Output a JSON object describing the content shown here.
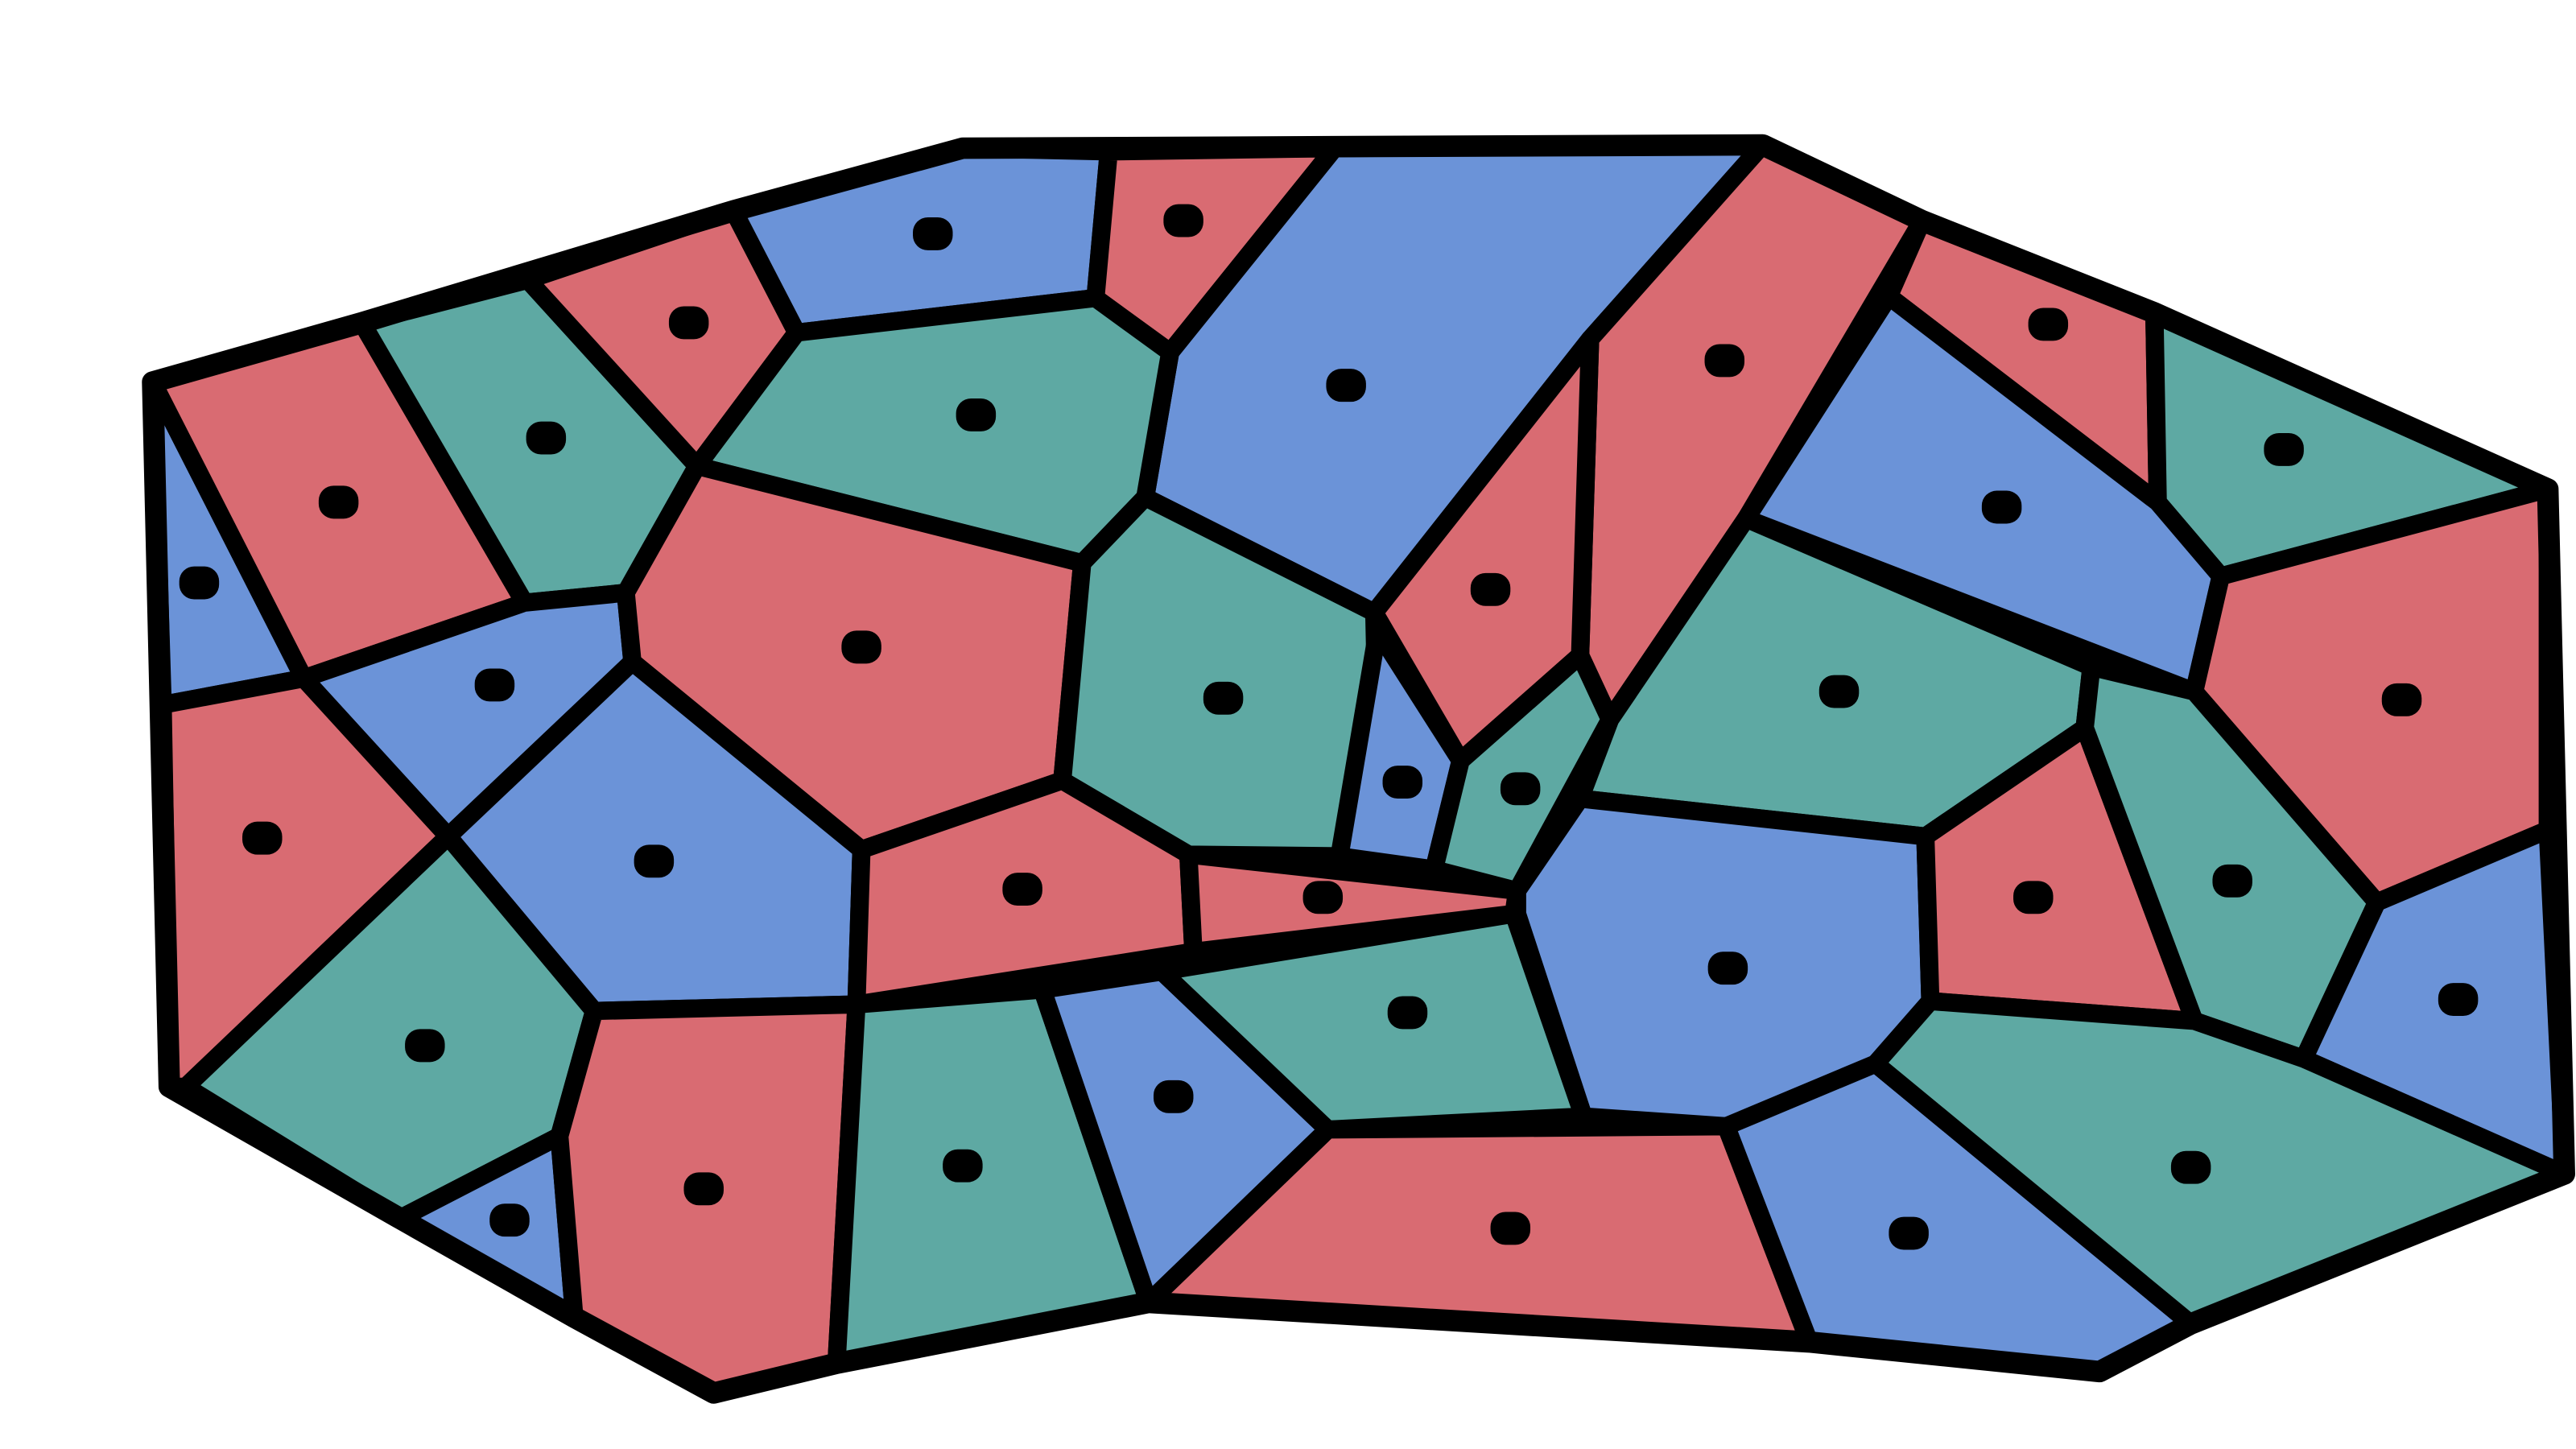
{
  "palette": {
    "red": "#d96b72",
    "blue": "#6b93d8",
    "green": "#5ea9a3",
    "border": "#000000",
    "background": "#ffffff"
  },
  "diagram": {
    "type": "voronoi-map-coloring",
    "cell_count": 39,
    "colors_used": 3
  }
}
